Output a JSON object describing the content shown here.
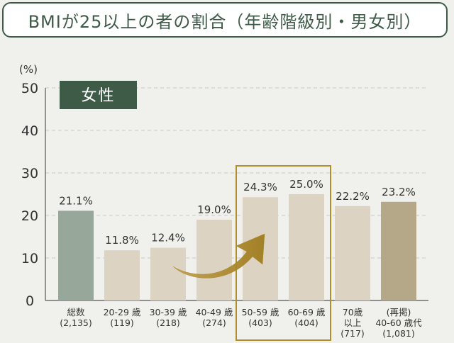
{
  "title": "BMIが25以上の者の割合（年齢階級別・男女別）",
  "chart_data": {
    "type": "bar",
    "unit_label": "(%)",
    "ylim": [
      0,
      50
    ],
    "yticks": [
      0,
      10,
      20,
      30,
      40,
      50
    ],
    "grid": true,
    "badge": "女性",
    "categories": [
      {
        "label": "総数",
        "count": "(2,135)"
      },
      {
        "label": "20-29 歳",
        "count": "(119)"
      },
      {
        "label": "30-39 歳",
        "count": "(218)"
      },
      {
        "label": "40-49 歳",
        "count": "(274)"
      },
      {
        "label": "50-59 歳",
        "count": "(403)"
      },
      {
        "label": "60-69 歳",
        "count": "(404)"
      },
      {
        "label": "70歳",
        "label2": "以上",
        "count": "(717)"
      },
      {
        "label": "(再掲)",
        "label2": "40-60 歳代",
        "count": "(1,081)"
      }
    ],
    "values": [
      21.1,
      11.8,
      12.4,
      19.0,
      24.3,
      25.0,
      22.2,
      23.2
    ],
    "value_labels": [
      "21.1%",
      "11.8%",
      "12.4%",
      "19.0%",
      "24.3%",
      "25.0%",
      "22.2%",
      "23.2%"
    ],
    "highlight": [
      4,
      5
    ],
    "colors": {
      "total": "#97a79a",
      "age": "#dcd3c3",
      "recap": "#b4a888",
      "highlight_box": "#b08e2c",
      "arrow": "#a7862a",
      "badge_bg": "#3e5b48",
      "grid": "#c8c8c8"
    }
  }
}
